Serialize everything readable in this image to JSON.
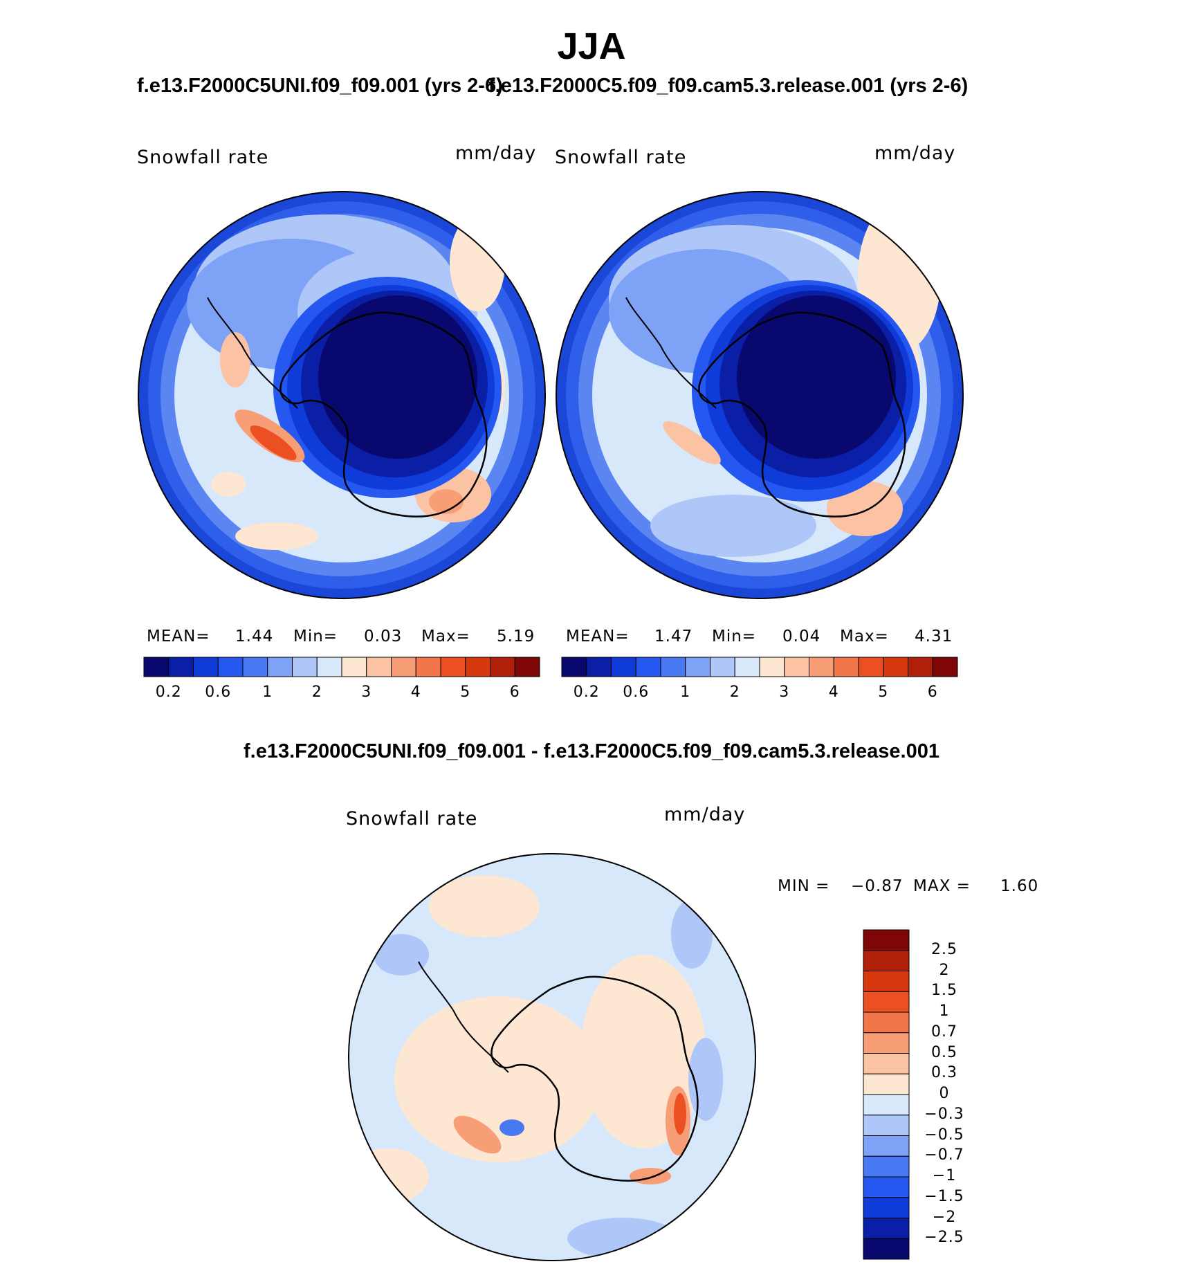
{
  "title": "JJA",
  "panels": [
    {
      "case": "f.e13.F2000C5UNI.f09_f09.001 (yrs 2-6)",
      "variable": "Snowfall rate",
      "units": "mm/day",
      "stats": {
        "mean_label": "MEAN=",
        "mean": "1.44",
        "min_label": "Min=",
        "min": "0.03",
        "max_label": "Max=",
        "max": "5.19"
      }
    },
    {
      "case": "f.e13.F2000C5.f09_f09.cam5.3.release.001 (yrs 2-6)",
      "variable": "Snowfall rate",
      "units": "mm/day",
      "stats": {
        "mean_label": "MEAN=",
        "mean": "1.47",
        "min_label": "Min=",
        "min": "0.04",
        "max_label": "Max=",
        "max": "4.31"
      }
    }
  ],
  "colorbar": {
    "labels": [
      "0.2",
      "0.6",
      "1",
      "2",
      "3",
      "4",
      "5",
      "6"
    ],
    "colors": [
      "#08086e",
      "#0a1fa6",
      "#0f3bd8",
      "#2458f0",
      "#4879f2",
      "#7ea2f6",
      "#aec6f8",
      "#d8e8fb",
      "#fde6d2",
      "#fbc3a4",
      "#f79e76",
      "#f2764a",
      "#ec4f22",
      "#d8380d",
      "#b01f0a",
      "#7f0606"
    ]
  },
  "difference": {
    "title": "f.e13.F2000C5UNI.f09_f09.001 - f.e13.F2000C5.f09_f09.cam5.3.release.001",
    "variable": "Snowfall rate",
    "units": "mm/day",
    "min_label": "MIN =",
    "min": "−0.87",
    "max_label": "MAX =",
    "max": "1.60",
    "colorbar_labels": [
      "2.5",
      "2",
      "1.5",
      "1",
      "0.7",
      "0.5",
      "0.3",
      "0",
      "−0.3",
      "−0.5",
      "−0.7",
      "−1",
      "−1.5",
      "−2",
      "−2.5"
    ],
    "colorbar_colors": [
      "#7f0606",
      "#b01f0a",
      "#d8380d",
      "#ec4f22",
      "#f2764a",
      "#f79e76",
      "#fbc3a4",
      "#fde6d2",
      "#d8e8fb",
      "#aec6f8",
      "#7ea2f6",
      "#4879f2",
      "#2458f0",
      "#0f3bd8",
      "#0a1fa6",
      "#08086e"
    ]
  }
}
